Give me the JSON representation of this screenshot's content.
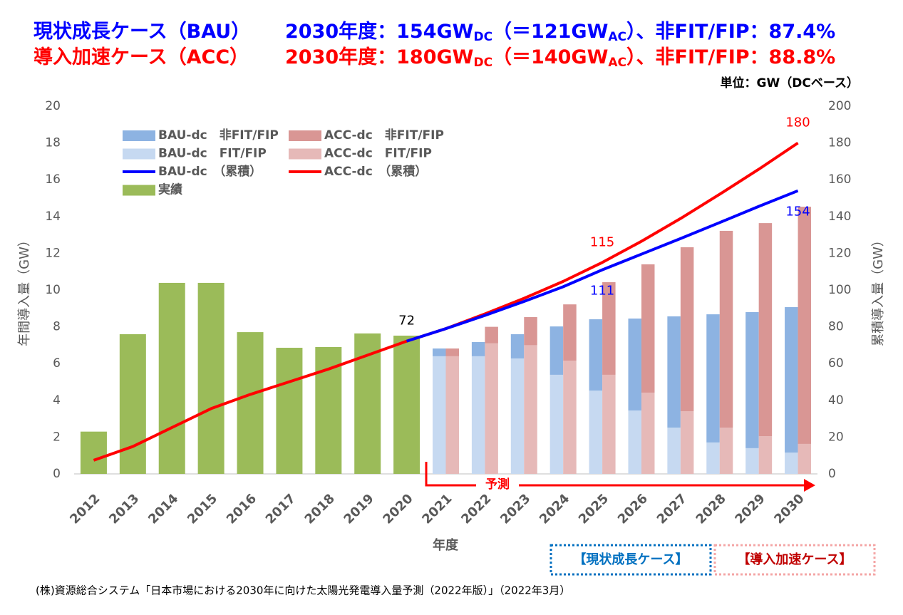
{
  "chart_data": {
    "type": "bar",
    "title_lines": [
      {
        "case": "現状成長ケース（BAU）",
        "detail": [
          "2030年度：154GW",
          "DC",
          "（＝121GW",
          "AC",
          "）、非FIT/FIP：87.4%"
        ],
        "color": "#0000ff"
      },
      {
        "case": "導入加速ケース（ACC）",
        "detail": [
          "2030年度：180GW",
          "DC",
          "（＝140GW",
          "AC",
          "）、非FIT/FIP：88.8%"
        ],
        "color": "#ff0000"
      }
    ],
    "unit_note": "単位：GW（DCベース）",
    "y_label": "年間導入量（GW）",
    "y2_label": "累積導入量（GW）",
    "x_label": "年度",
    "forecast_label": "予測",
    "case_boxes": [
      {
        "text": "【現状成長ケース】",
        "color": "#0070c0"
      },
      {
        "text": "【導入加速ケース】",
        "color": "#c00000"
      }
    ],
    "source": "(株)資源総合システム「日本市場における2030年に向けた太陽光発電導入量予測（2022年版）」（2022年3月）",
    "categories": [
      "2012",
      "2013",
      "2014",
      "2015",
      "2016",
      "2017",
      "2018",
      "2019",
      "2020",
      "2021",
      "2022",
      "2023",
      "2024",
      "2025",
      "2026",
      "2027",
      "2028",
      "2029",
      "2030"
    ],
    "ylim": [
      0,
      20
    ],
    "yticks": [
      0,
      2,
      4,
      6,
      8,
      10,
      12,
      14,
      16,
      18,
      20
    ],
    "y2lim": [
      0,
      200
    ],
    "y2ticks": [
      0,
      20,
      40,
      60,
      80,
      100,
      120,
      140,
      160,
      180,
      200
    ],
    "grid": true,
    "legend": "top-left",
    "series": [
      {
        "name": "BAU-dc　非FIT/FIP",
        "type": "bar",
        "stack": "BAU",
        "color": "#8db3e2",
        "values": [
          null,
          null,
          null,
          null,
          null,
          null,
          null,
          null,
          null,
          0.42,
          0.77,
          1.32,
          2.63,
          3.88,
          5.0,
          6.05,
          6.97,
          7.4,
          7.91
        ]
      },
      {
        "name": "ACC-dc　非FIT/FIP",
        "type": "bar",
        "stack": "ACC",
        "color": "#d99694",
        "values": [
          null,
          null,
          null,
          null,
          null,
          null,
          null,
          null,
          null,
          0.42,
          0.9,
          1.53,
          3.06,
          5.04,
          6.98,
          8.92,
          10.7,
          11.59,
          12.9
        ]
      },
      {
        "name": "BAU-dc　FIT/FIP",
        "type": "bar",
        "stack": "BAU",
        "color": "#c6d9f1",
        "values": [
          null,
          null,
          null,
          null,
          null,
          null,
          null,
          null,
          null,
          6.4,
          6.4,
          6.28,
          5.39,
          4.53,
          3.45,
          2.52,
          1.71,
          1.4,
          1.16
        ]
      },
      {
        "name": "ACC-dc　FIT/FIP",
        "type": "bar",
        "stack": "ACC",
        "color": "#e6b9b8",
        "values": [
          null,
          null,
          null,
          null,
          null,
          null,
          null,
          null,
          null,
          6.4,
          7.1,
          7.0,
          6.16,
          5.39,
          4.42,
          3.41,
          2.52,
          2.05,
          1.63
        ]
      },
      {
        "name": "BAU-dc　（累積）",
        "type": "line",
        "axis": "y2",
        "color": "#0000ff",
        "label_position": "below",
        "values": [
          null,
          null,
          null,
          null,
          null,
          null,
          null,
          null,
          72.2,
          79,
          86.2,
          93.8,
          101.8,
          111,
          119.5,
          128,
          136.7,
          145.5,
          154
        ],
        "value_labels": [
          null,
          null,
          null,
          null,
          null,
          null,
          null,
          null,
          null,
          null,
          null,
          null,
          null,
          "111",
          null,
          null,
          null,
          null,
          "154"
        ],
        "value_label_colors": [
          null,
          null,
          null,
          null,
          null,
          null,
          null,
          null,
          null,
          null,
          null,
          null,
          null,
          "#0000ff",
          null,
          null,
          null,
          null,
          "#0000ff"
        ]
      },
      {
        "name": "ACC-dc　（累積）",
        "type": "line",
        "axis": "y2",
        "color": "#ff0000",
        "label_position": "above",
        "values": [
          7.4,
          14.9,
          25.2,
          35.5,
          43.2,
          50.1,
          57,
          64.6,
          72.2,
          79,
          87,
          95.5,
          104.7,
          115,
          126.5,
          138.9,
          152.1,
          165.7,
          180
        ],
        "value_labels": [
          null,
          null,
          null,
          null,
          null,
          null,
          null,
          null,
          "72",
          null,
          null,
          null,
          null,
          "115",
          null,
          null,
          null,
          null,
          "180"
        ],
        "value_label_colors": [
          null,
          null,
          null,
          null,
          null,
          null,
          null,
          null,
          "#000000",
          null,
          null,
          null,
          null,
          "#ff0000",
          null,
          null,
          null,
          null,
          "#ff0000"
        ]
      },
      {
        "name": "実績",
        "type": "bar",
        "stack": "actual",
        "color": "#9bbb59",
        "values": [
          2.3,
          7.6,
          10.39,
          10.39,
          7.71,
          6.86,
          6.9,
          7.64,
          7.52,
          null,
          null,
          null,
          null,
          null,
          null,
          null,
          null,
          null,
          null
        ]
      }
    ]
  }
}
